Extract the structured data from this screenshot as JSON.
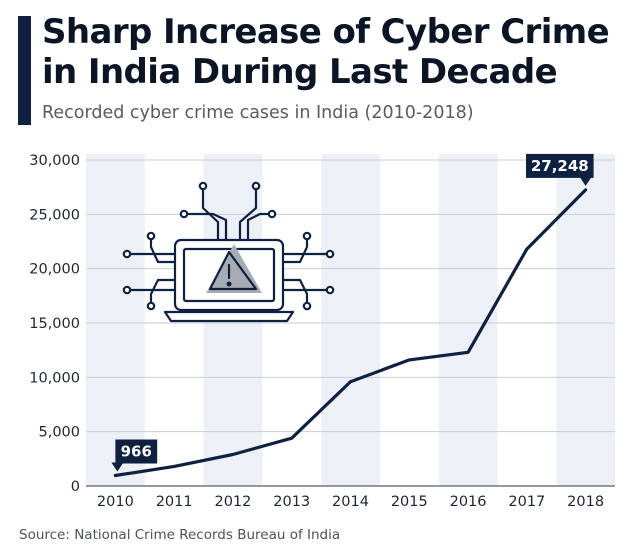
{
  "header": {
    "title": "Sharp Increase of Cyber Crime in India During Last Decade",
    "subtitle": "Recorded cyber crime cases in India (2010-2018)"
  },
  "footer": {
    "source": "Source: National Crime Records Bureau of India"
  },
  "icons": {
    "illustration": "laptop-circuit-warning-icon"
  },
  "colors": {
    "line": "#0f2140",
    "accent": "#0f2140",
    "stripe": "#eef0f7",
    "grid": "#c9ccd3"
  },
  "chart_data": {
    "type": "line",
    "title": "Sharp Increase of Cyber Crime in India During Last Decade",
    "subtitle": "Recorded cyber crime cases in India (2010-2018)",
    "xlabel": "",
    "ylabel": "",
    "categories": [
      "2010",
      "2011",
      "2012",
      "2013",
      "2014",
      "2015",
      "2016",
      "2017",
      "2018"
    ],
    "series": [
      {
        "values": [
          966,
          1800,
          2900,
          4400,
          9600,
          11600,
          12300,
          21800,
          27248
        ]
      }
    ],
    "ylim": [
      0,
      30000
    ],
    "yticks": [
      0,
      5000,
      10000,
      15000,
      20000,
      25000,
      30000
    ],
    "ytick_labels": [
      "0",
      "5,000",
      "10,000",
      "15,000",
      "20,000",
      "25,000",
      "30,000"
    ],
    "annotations": [
      {
        "category": "2010",
        "value": 966,
        "label": "966"
      },
      {
        "category": "2018",
        "value": 27248,
        "label": "27,248"
      }
    ],
    "grid": true,
    "legend": "none"
  }
}
